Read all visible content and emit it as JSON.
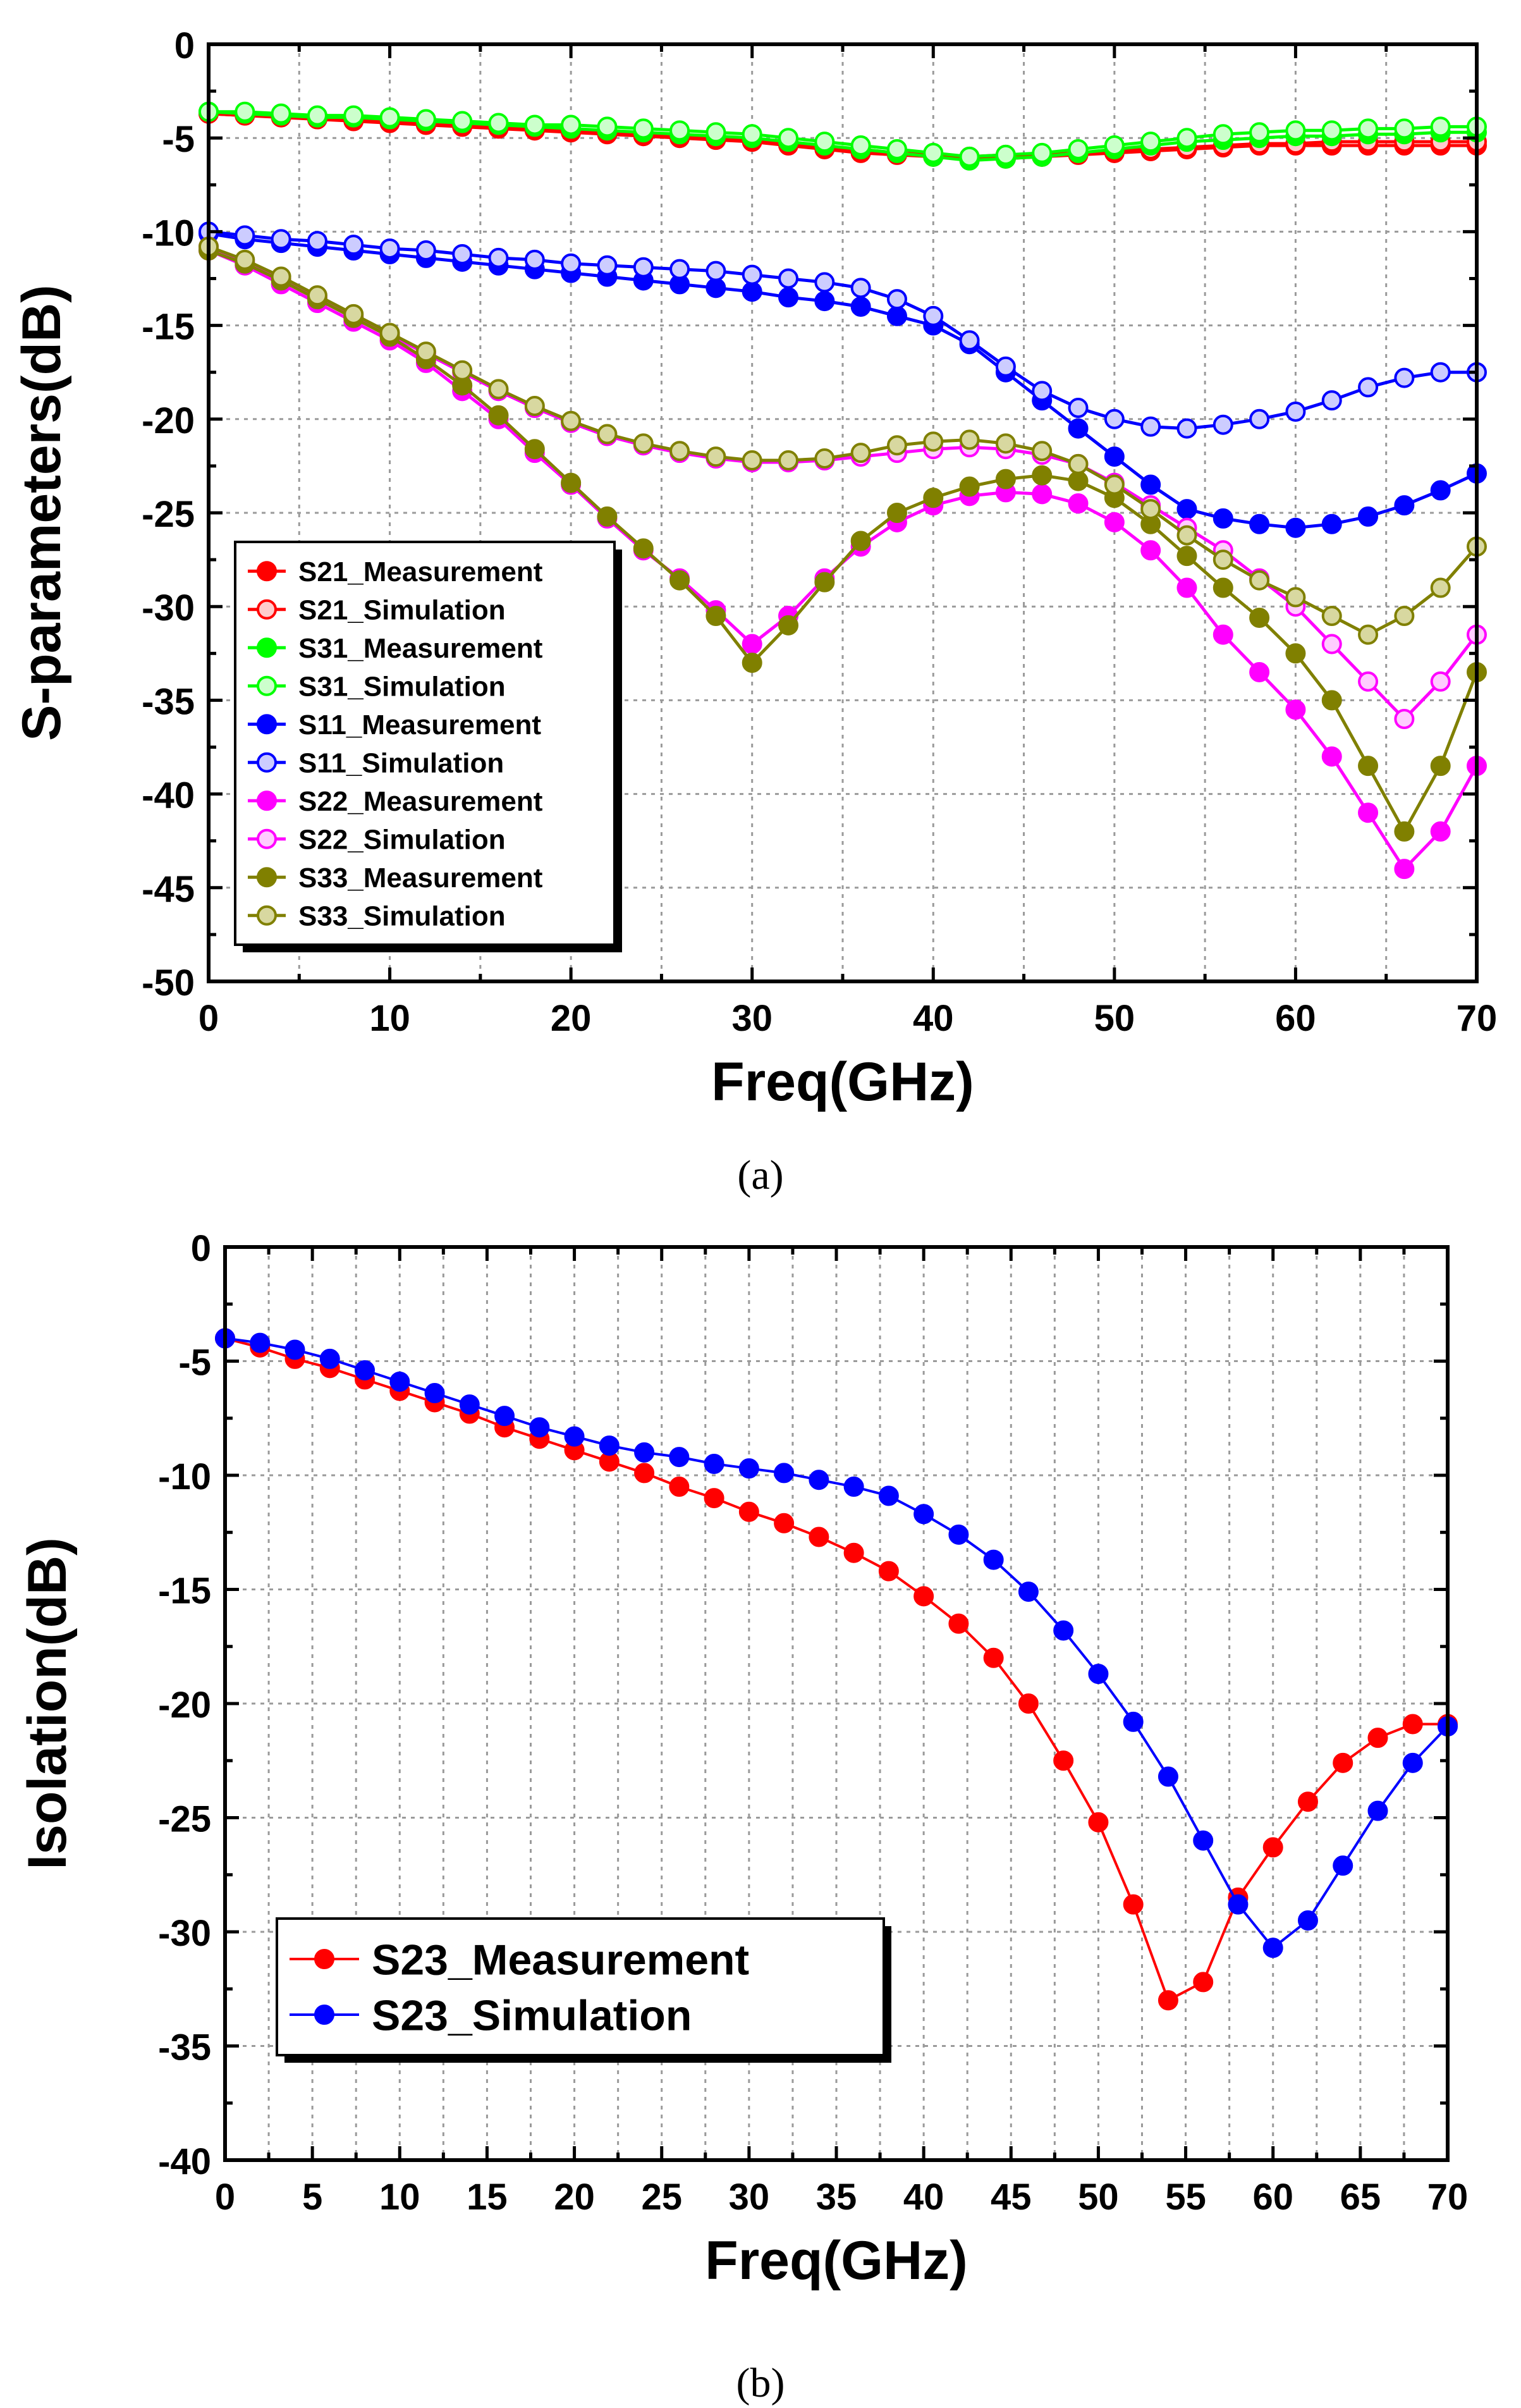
{
  "figure": {
    "caption_a": "(a)",
    "caption_b": "(b)"
  },
  "chart_data": [
    {
      "type": "line",
      "title": "",
      "xlabel": "Freq(GHz)",
      "ylabel": "S-parameters(dB)",
      "xlim": [
        0,
        70
      ],
      "ylim": [
        -50,
        0
      ],
      "xticks": [
        0,
        10,
        20,
        30,
        40,
        50,
        60,
        70
      ],
      "yticks": [
        0,
        -5,
        -10,
        -15,
        -20,
        -25,
        -30,
        -35,
        -40,
        -45,
        -50
      ],
      "grid": true,
      "legend_position": "bottom-left",
      "x": [
        0,
        2,
        4,
        6,
        8,
        10,
        12,
        14,
        16,
        18,
        20,
        22,
        24,
        26,
        28,
        30,
        32,
        34,
        36,
        38,
        40,
        42,
        44,
        46,
        48,
        50,
        52,
        54,
        56,
        58,
        60,
        62,
        64,
        66,
        68,
        70
      ],
      "series": [
        {
          "name": "S21_Measurement",
          "color": "#ff0000",
          "marker_fill": "#ff0000",
          "values": [
            -3.7,
            -3.8,
            -3.9,
            -4.0,
            -4.1,
            -4.2,
            -4.3,
            -4.4,
            -4.5,
            -4.6,
            -4.7,
            -4.8,
            -4.9,
            -5.0,
            -5.1,
            -5.2,
            -5.4,
            -5.6,
            -5.8,
            -5.9,
            -6.0,
            -6.1,
            -6.1,
            -6.0,
            -5.9,
            -5.8,
            -5.7,
            -5.6,
            -5.5,
            -5.4,
            -5.4,
            -5.4,
            -5.4,
            -5.4,
            -5.4,
            -5.4
          ]
        },
        {
          "name": "S21_Simulation",
          "color": "#ff0000",
          "marker_fill": "#ffcccc",
          "values": [
            -3.7,
            -3.8,
            -3.8,
            -3.9,
            -4.0,
            -4.1,
            -4.2,
            -4.3,
            -4.4,
            -4.5,
            -4.6,
            -4.7,
            -4.8,
            -4.9,
            -5.0,
            -5.1,
            -5.3,
            -5.5,
            -5.6,
            -5.8,
            -5.9,
            -6.0,
            -5.9,
            -5.9,
            -5.8,
            -5.7,
            -5.6,
            -5.5,
            -5.4,
            -5.3,
            -5.3,
            -5.2,
            -5.2,
            -5.2,
            -5.2,
            -5.2
          ]
        },
        {
          "name": "S31_Measurement",
          "color": "#00ff00",
          "marker_fill": "#00ff00",
          "values": [
            -3.6,
            -3.7,
            -3.8,
            -3.9,
            -3.9,
            -4.0,
            -4.1,
            -4.2,
            -4.3,
            -4.4,
            -4.5,
            -4.6,
            -4.7,
            -4.8,
            -4.9,
            -5.0,
            -5.2,
            -5.4,
            -5.6,
            -5.8,
            -6.0,
            -6.2,
            -6.1,
            -6.0,
            -5.8,
            -5.6,
            -5.4,
            -5.2,
            -5.1,
            -5.0,
            -4.9,
            -4.9,
            -4.8,
            -4.8,
            -4.7,
            -4.7
          ]
        },
        {
          "name": "S31_Simulation",
          "color": "#00ff00",
          "marker_fill": "#ccffcc",
          "values": [
            -3.6,
            -3.6,
            -3.7,
            -3.8,
            -3.8,
            -3.9,
            -4.0,
            -4.1,
            -4.2,
            -4.3,
            -4.3,
            -4.4,
            -4.5,
            -4.6,
            -4.7,
            -4.8,
            -5.0,
            -5.2,
            -5.4,
            -5.6,
            -5.8,
            -6.0,
            -5.9,
            -5.8,
            -5.6,
            -5.4,
            -5.2,
            -5.0,
            -4.8,
            -4.7,
            -4.6,
            -4.6,
            -4.5,
            -4.5,
            -4.4,
            -4.4
          ]
        },
        {
          "name": "S11_Measurement",
          "color": "#0000ff",
          "marker_fill": "#0000ff",
          "values": [
            -10.1,
            -10.4,
            -10.6,
            -10.8,
            -11.0,
            -11.2,
            -11.4,
            -11.6,
            -11.8,
            -12.0,
            -12.2,
            -12.4,
            -12.6,
            -12.8,
            -13.0,
            -13.2,
            -13.5,
            -13.7,
            -14.0,
            -14.5,
            -15.0,
            -16.0,
            -17.5,
            -19.0,
            -20.5,
            -22.0,
            -23.5,
            -24.8,
            -25.3,
            -25.6,
            -25.8,
            -25.6,
            -25.2,
            -24.6,
            -23.8,
            -22.9
          ]
        },
        {
          "name": "S11_Simulation",
          "color": "#0000ff",
          "marker_fill": "#ccccff",
          "values": [
            -10.0,
            -10.2,
            -10.4,
            -10.5,
            -10.7,
            -10.9,
            -11.0,
            -11.2,
            -11.4,
            -11.5,
            -11.7,
            -11.8,
            -11.9,
            -12.0,
            -12.1,
            -12.3,
            -12.5,
            -12.7,
            -13.0,
            -13.6,
            -14.5,
            -15.8,
            -17.2,
            -18.5,
            -19.4,
            -20.0,
            -20.4,
            -20.5,
            -20.3,
            -20.0,
            -19.6,
            -19.0,
            -18.3,
            -17.8,
            -17.5,
            -17.5
          ]
        },
        {
          "name": "S22_Measurement",
          "color": "#ff00ff",
          "marker_fill": "#ff00ff",
          "values": [
            -11.0,
            -11.8,
            -12.8,
            -13.8,
            -14.8,
            -15.8,
            -17.0,
            -18.5,
            -20.0,
            -21.8,
            -23.5,
            -25.3,
            -27.0,
            -28.5,
            -30.2,
            -32.0,
            -30.5,
            -28.5,
            -26.8,
            -25.5,
            -24.6,
            -24.1,
            -23.9,
            -24.0,
            -24.5,
            -25.5,
            -27.0,
            -29.0,
            -31.5,
            -33.5,
            -35.5,
            -38.0,
            -41.0,
            -44.0,
            -42.0,
            -38.5
          ]
        },
        {
          "name": "S22_Simulation",
          "color": "#ff00ff",
          "marker_fill": "#ffccff",
          "values": [
            -10.8,
            -11.6,
            -12.5,
            -13.5,
            -14.5,
            -15.5,
            -16.5,
            -17.5,
            -18.5,
            -19.4,
            -20.2,
            -20.9,
            -21.4,
            -21.8,
            -22.1,
            -22.3,
            -22.3,
            -22.2,
            -22.0,
            -21.8,
            -21.6,
            -21.5,
            -21.6,
            -21.9,
            -22.4,
            -23.4,
            -24.6,
            -25.8,
            -27.0,
            -28.5,
            -30.0,
            -32.0,
            -34.0,
            -36.0,
            -34.0,
            -31.5
          ]
        },
        {
          "name": "S33_Measurement",
          "color": "#808000",
          "marker_fill": "#808000",
          "values": [
            -11.0,
            -11.7,
            -12.6,
            -13.6,
            -14.6,
            -15.6,
            -16.8,
            -18.2,
            -19.8,
            -21.6,
            -23.4,
            -25.2,
            -26.9,
            -28.6,
            -30.5,
            -33.0,
            -31.0,
            -28.7,
            -26.5,
            -25.0,
            -24.2,
            -23.6,
            -23.2,
            -23.0,
            -23.3,
            -24.2,
            -25.6,
            -27.3,
            -29.0,
            -30.6,
            -32.5,
            -35.0,
            -38.5,
            -42.0,
            -38.5,
            -33.5
          ]
        },
        {
          "name": "S33_Simulation",
          "color": "#808000",
          "marker_fill": "#d8d8a0",
          "values": [
            -10.8,
            -11.5,
            -12.4,
            -13.4,
            -14.4,
            -15.4,
            -16.4,
            -17.4,
            -18.4,
            -19.3,
            -20.1,
            -20.8,
            -21.3,
            -21.7,
            -22.0,
            -22.2,
            -22.2,
            -22.1,
            -21.8,
            -21.4,
            -21.2,
            -21.1,
            -21.3,
            -21.7,
            -22.4,
            -23.5,
            -24.8,
            -26.2,
            -27.5,
            -28.6,
            -29.5,
            -30.5,
            -31.5,
            -30.5,
            -29.0,
            -26.8
          ]
        }
      ]
    },
    {
      "type": "line",
      "title": "",
      "xlabel": "Freq(GHz)",
      "ylabel": "Isolation(dB)",
      "xlim": [
        0,
        70
      ],
      "ylim": [
        -40,
        0
      ],
      "xticks": [
        0,
        5,
        10,
        15,
        20,
        25,
        30,
        35,
        40,
        45,
        50,
        55,
        60,
        65,
        70
      ],
      "yticks": [
        0,
        -5,
        -10,
        -15,
        -20,
        -25,
        -30,
        -35,
        -40
      ],
      "grid": true,
      "legend_position": "bottom-left",
      "x": [
        0,
        2,
        4,
        6,
        8,
        10,
        12,
        14,
        16,
        18,
        20,
        22,
        24,
        26,
        28,
        30,
        32,
        34,
        36,
        38,
        40,
        42,
        44,
        46,
        48,
        50,
        52,
        54,
        56,
        58,
        60,
        62,
        64,
        66,
        68,
        70
      ],
      "series": [
        {
          "name": "S23_Measurement",
          "color": "#ff0000",
          "marker_fill": "#ff0000",
          "values": [
            -4.0,
            -4.4,
            -4.9,
            -5.3,
            -5.8,
            -6.3,
            -6.8,
            -7.3,
            -7.9,
            -8.4,
            -8.9,
            -9.4,
            -9.9,
            -10.5,
            -11.0,
            -11.6,
            -12.1,
            -12.7,
            -13.4,
            -14.2,
            -15.3,
            -16.5,
            -18.0,
            -20.0,
            -22.5,
            -25.2,
            -28.8,
            -33.0,
            -32.2,
            -28.5,
            -26.3,
            -24.3,
            -22.6,
            -21.5,
            -20.9,
            -20.9
          ]
        },
        {
          "name": "S23_Simulation",
          "color": "#0000ff",
          "marker_fill": "#0000ff",
          "values": [
            -4.0,
            -4.2,
            -4.5,
            -4.9,
            -5.4,
            -5.9,
            -6.4,
            -6.9,
            -7.4,
            -7.9,
            -8.3,
            -8.7,
            -9.0,
            -9.2,
            -9.5,
            -9.7,
            -9.9,
            -10.2,
            -10.5,
            -10.9,
            -11.7,
            -12.6,
            -13.7,
            -15.1,
            -16.8,
            -18.7,
            -20.8,
            -23.2,
            -26.0,
            -28.8,
            -30.7,
            -29.5,
            -27.1,
            -24.7,
            -22.6,
            -21.0
          ]
        }
      ]
    }
  ]
}
